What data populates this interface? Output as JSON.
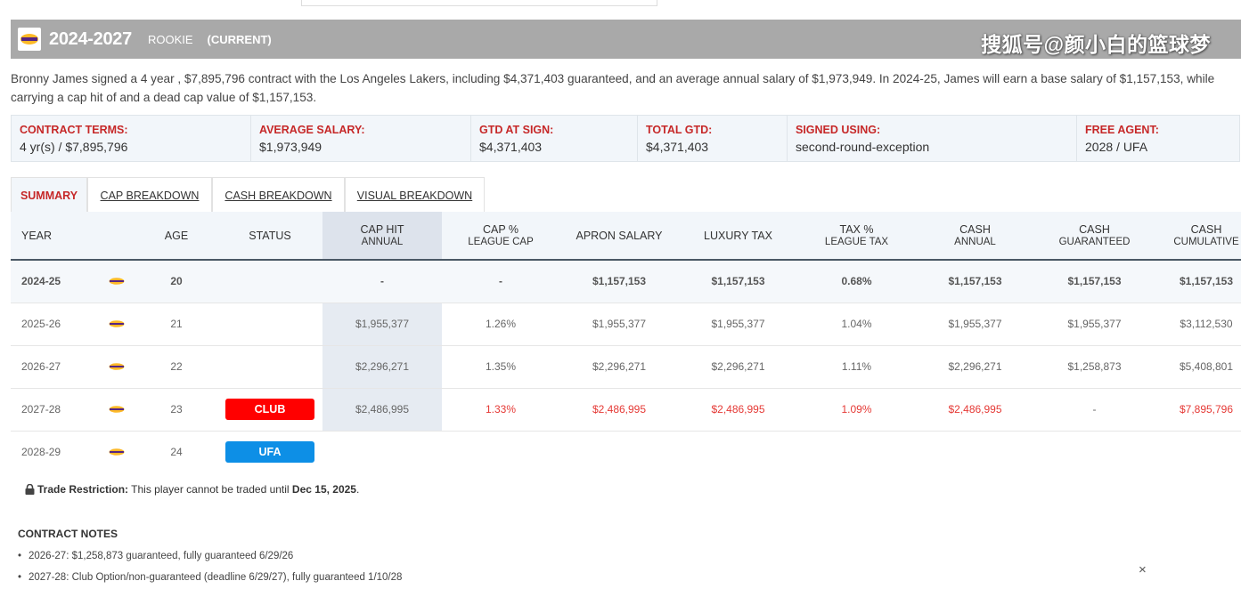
{
  "header": {
    "years": "2024-2027",
    "type": "ROOKIE",
    "status": "(CURRENT)",
    "watermark": "搜狐号@颜小白的篮球梦"
  },
  "summary": "Bronny James signed a 4 year , $7,895,796 contract with the Los Angeles Lakers, including $4,371,403 guaranteed, and an average annual salary of $1,973,949. In 2024-25, James will earn a base salary of $1,157,153, while carrying a cap hit of and a dead cap value of $1,157,153.",
  "terms": [
    {
      "label": "CONTRACT TERMS:",
      "value": "4 yr(s) / $7,895,796"
    },
    {
      "label": "AVERAGE SALARY:",
      "value": "$1,973,949"
    },
    {
      "label": "GTD AT SIGN:",
      "value": "$4,371,403"
    },
    {
      "label": "TOTAL GTD:",
      "value": "$4,371,403"
    },
    {
      "label": "SIGNED USING:",
      "value": "second-round-exception"
    },
    {
      "label": "FREE AGENT:",
      "value": "2028 / UFA"
    }
  ],
  "tabs": [
    "SUMMARY",
    "CAP BREAKDOWN",
    "CASH BREAKDOWN",
    "VISUAL BREAKDOWN"
  ],
  "columns": [
    {
      "main": "YEAR",
      "sub": ""
    },
    {
      "main": "",
      "sub": ""
    },
    {
      "main": "AGE",
      "sub": ""
    },
    {
      "main": "STATUS",
      "sub": ""
    },
    {
      "main": "CAP HIT",
      "sub": "ANNUAL"
    },
    {
      "main": "CAP %",
      "sub": "LEAGUE CAP"
    },
    {
      "main": "APRON SALARY",
      "sub": ""
    },
    {
      "main": "LUXURY TAX",
      "sub": ""
    },
    {
      "main": "TAX %",
      "sub": "LEAGUE TAX"
    },
    {
      "main": "CASH",
      "sub": "ANNUAL"
    },
    {
      "main": "CASH",
      "sub": "GUARANTEED"
    },
    {
      "main": "CASH",
      "sub": "CUMULATIVE"
    }
  ],
  "rows": [
    {
      "year": "2024-25",
      "age": "20",
      "status": "",
      "cap_hit": "-",
      "cap_pct": "-",
      "apron": "$1,157,153",
      "luxury": "$1,157,153",
      "tax_pct": "0.68%",
      "cash_annual": "$1,157,153",
      "cash_gtd": "$1,157,153",
      "cash_cum": "$1,157,153"
    },
    {
      "year": "2025-26",
      "age": "21",
      "status": "",
      "cap_hit": "$1,955,377",
      "cap_pct": "1.26%",
      "apron": "$1,955,377",
      "luxury": "$1,955,377",
      "tax_pct": "1.04%",
      "cash_annual": "$1,955,377",
      "cash_gtd": "$1,955,377",
      "cash_cum": "$3,112,530"
    },
    {
      "year": "2026-27",
      "age": "22",
      "status": "",
      "cap_hit": "$2,296,271",
      "cap_pct": "1.35%",
      "apron": "$2,296,271",
      "luxury": "$2,296,271",
      "tax_pct": "1.11%",
      "cash_annual": "$2,296,271",
      "cash_gtd": "$1,258,873",
      "cash_cum": "$5,408,801"
    },
    {
      "year": "2027-28",
      "age": "23",
      "status": "CLUB",
      "cap_hit": "$2,486,995",
      "cap_pct": "1.33%",
      "apron": "$2,486,995",
      "luxury": "$2,486,995",
      "tax_pct": "1.09%",
      "cash_annual": "$2,486,995",
      "cash_gtd": "-",
      "cash_cum": "$7,895,796"
    },
    {
      "year": "2028-29",
      "age": "24",
      "status": "UFA"
    }
  ],
  "trade": {
    "label": "Trade Restriction:",
    "text": " This player cannot be traded until ",
    "date": "Dec 15, 2025",
    "end": "."
  },
  "notes": {
    "title": "CONTRACT NOTES",
    "items": [
      "2026-27: $1,258,873 guaranteed, fully guaranteed 6/29/26",
      "2027-28: Club Option/non-guaranteed (deadline 6/29/27), fully guaranteed 1/10/28"
    ]
  },
  "close_label": "×",
  "colors": {
    "accent_red": "#c62828",
    "club": "#ff0000",
    "ufa": "#0d8fe6",
    "header_bg": "#a9a9a9",
    "lakers_purple": "#552583",
    "lakers_gold": "#fdb927"
  }
}
